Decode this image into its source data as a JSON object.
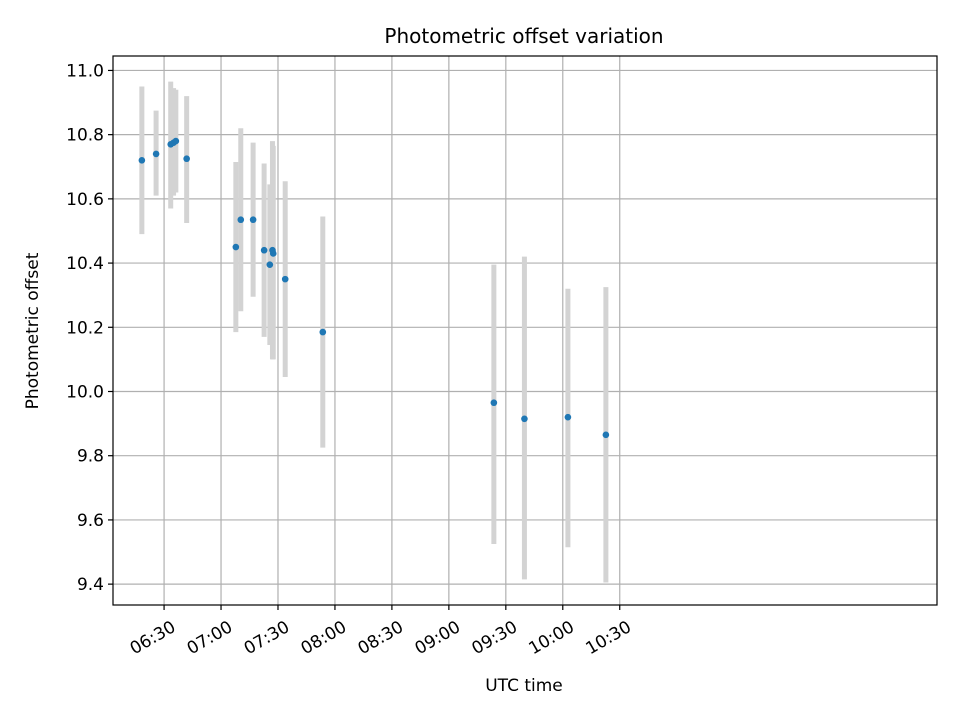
{
  "chart_data": {
    "type": "scatter",
    "title": "Photometric offset variation",
    "xlabel": "UTC time",
    "ylabel": "Photometric offset",
    "x_unit": "minutes since 06:00 UTC",
    "xlim": [
      3.1,
      437.1
    ],
    "ylim": [
      9.335,
      11.045
    ],
    "grid": true,
    "x_ticks": [
      {
        "value": 30,
        "label": "06:30"
      },
      {
        "value": 60,
        "label": "07:00"
      },
      {
        "value": 90,
        "label": "07:30"
      },
      {
        "value": 120,
        "label": "08:00"
      },
      {
        "value": 150,
        "label": "08:30"
      },
      {
        "value": 180,
        "label": "09:00"
      },
      {
        "value": 210,
        "label": "09:30"
      },
      {
        "value": 240,
        "label": "10:00"
      },
      {
        "value": 270,
        "label": "10:30"
      }
    ],
    "y_ticks": [
      {
        "value": 9.4,
        "label": "9.4"
      },
      {
        "value": 9.6,
        "label": "9.6"
      },
      {
        "value": 9.8,
        "label": "9.8"
      },
      {
        "value": 10.0,
        "label": "10.0"
      },
      {
        "value": 10.2,
        "label": "10.2"
      },
      {
        "value": 10.4,
        "label": "10.4"
      },
      {
        "value": 10.6,
        "label": "10.6"
      },
      {
        "value": 10.8,
        "label": "10.8"
      },
      {
        "value": 11.0,
        "label": "11.0"
      }
    ],
    "series": [
      {
        "name": "offset",
        "color": "#1f77b4",
        "errorbar_color": "#d3d3d3",
        "points": [
          {
            "x": 18.3,
            "y": 10.72,
            "low": 10.49,
            "high": 10.95
          },
          {
            "x": 25.8,
            "y": 10.74,
            "low": 10.61,
            "high": 10.875
          },
          {
            "x": 33.5,
            "y": 10.77,
            "low": 10.57,
            "high": 10.965
          },
          {
            "x": 35.0,
            "y": 10.775,
            "low": 10.61,
            "high": 10.945
          },
          {
            "x": 36.2,
            "y": 10.78,
            "low": 10.62,
            "high": 10.94
          },
          {
            "x": 41.9,
            "y": 10.725,
            "low": 10.525,
            "high": 10.92
          },
          {
            "x": 67.8,
            "y": 10.45,
            "low": 10.185,
            "high": 10.715
          },
          {
            "x": 70.4,
            "y": 10.535,
            "low": 10.25,
            "high": 10.82
          },
          {
            "x": 76.9,
            "y": 10.535,
            "low": 10.295,
            "high": 10.775
          },
          {
            "x": 82.7,
            "y": 10.44,
            "low": 10.17,
            "high": 10.71
          },
          {
            "x": 85.7,
            "y": 10.395,
            "low": 10.145,
            "high": 10.645
          },
          {
            "x": 87.1,
            "y": 10.44,
            "low": 10.1,
            "high": 10.78
          },
          {
            "x": 87.5,
            "y": 10.43,
            "low": 10.1,
            "high": 10.765
          },
          {
            "x": 93.8,
            "y": 10.35,
            "low": 10.045,
            "high": 10.655
          },
          {
            "x": 113.6,
            "y": 10.185,
            "low": 9.825,
            "high": 10.545
          },
          {
            "x": 203.7,
            "y": 9.965,
            "low": 9.525,
            "high": 10.395
          },
          {
            "x": 219.8,
            "y": 9.915,
            "low": 9.415,
            "high": 10.42
          },
          {
            "x": 242.7,
            "y": 9.92,
            "low": 9.515,
            "high": 10.32
          },
          {
            "x": 262.7,
            "y": 9.865,
            "low": 9.405,
            "high": 10.325
          }
        ]
      }
    ]
  }
}
